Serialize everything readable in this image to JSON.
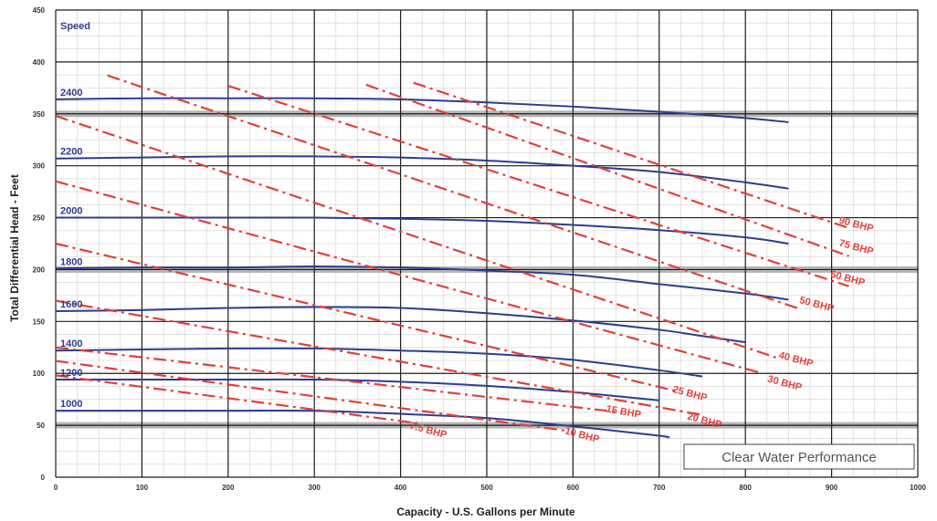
{
  "chart_data": {
    "type": "line",
    "xlabel": "Capacity - U.S. Gallons per Minute",
    "ylabel": "Total Differential Head - Feet",
    "xlim": [
      0,
      1000
    ],
    "ylim": [
      0,
      450
    ],
    "x_ticks": [
      0,
      100,
      200,
      300,
      400,
      500,
      600,
      700,
      800,
      900,
      1000
    ],
    "y_ticks": [
      0,
      50,
      100,
      150,
      200,
      250,
      300,
      350,
      400,
      450
    ],
    "grid": true,
    "legend_title": "Speed",
    "annotation": "Clear Water Performance",
    "colors": {
      "speed": "#2d3d8e",
      "bhp": "#e0403a",
      "grid": "#1c1c1c",
      "minor_grid": "#cfcfcf",
      "band": "#b5b5b5"
    },
    "series": [
      {
        "name": "2400",
        "kind": "speed",
        "points": [
          [
            0,
            364
          ],
          [
            100,
            365
          ],
          [
            200,
            365
          ],
          [
            300,
            365
          ],
          [
            400,
            364
          ],
          [
            500,
            361
          ],
          [
            600,
            357
          ],
          [
            700,
            352
          ],
          [
            800,
            346
          ],
          [
            850,
            342
          ]
        ]
      },
      {
        "name": "2200",
        "kind": "speed",
        "points": [
          [
            0,
            307
          ],
          [
            100,
            308
          ],
          [
            200,
            309
          ],
          [
            300,
            309
          ],
          [
            400,
            308
          ],
          [
            500,
            305
          ],
          [
            600,
            300
          ],
          [
            700,
            294
          ],
          [
            800,
            284
          ],
          [
            850,
            278
          ]
        ]
      },
      {
        "name": "2000",
        "kind": "speed",
        "points": [
          [
            0,
            250
          ],
          [
            100,
            250
          ],
          [
            200,
            250
          ],
          [
            300,
            250
          ],
          [
            400,
            249
          ],
          [
            500,
            247
          ],
          [
            600,
            243
          ],
          [
            700,
            238
          ],
          [
            800,
            231
          ],
          [
            850,
            225
          ]
        ]
      },
      {
        "name": "1800",
        "kind": "speed",
        "points": [
          [
            0,
            201
          ],
          [
            100,
            202
          ],
          [
            200,
            202
          ],
          [
            300,
            203
          ],
          [
            400,
            202
          ],
          [
            500,
            199
          ],
          [
            600,
            195
          ],
          [
            700,
            186
          ],
          [
            800,
            177
          ],
          [
            850,
            171
          ]
        ]
      },
      {
        "name": "1600",
        "kind": "speed",
        "points": [
          [
            0,
            160
          ],
          [
            100,
            161
          ],
          [
            200,
            163
          ],
          [
            300,
            164
          ],
          [
            400,
            163
          ],
          [
            500,
            158
          ],
          [
            600,
            151
          ],
          [
            700,
            142
          ],
          [
            750,
            136
          ],
          [
            800,
            130
          ]
        ]
      },
      {
        "name": "1400",
        "kind": "speed",
        "points": [
          [
            0,
            122
          ],
          [
            100,
            123
          ],
          [
            200,
            124
          ],
          [
            300,
            124
          ],
          [
            400,
            122
          ],
          [
            500,
            119
          ],
          [
            600,
            113
          ],
          [
            700,
            103
          ],
          [
            750,
            97
          ]
        ]
      },
      {
        "name": "1200",
        "kind": "speed",
        "points": [
          [
            0,
            94
          ],
          [
            100,
            94
          ],
          [
            200,
            94
          ],
          [
            300,
            94
          ],
          [
            400,
            92
          ],
          [
            500,
            88
          ],
          [
            600,
            82
          ],
          [
            700,
            74
          ]
        ]
      },
      {
        "name": "1000",
        "kind": "speed",
        "points": [
          [
            0,
            64
          ],
          [
            100,
            64
          ],
          [
            200,
            64
          ],
          [
            300,
            64
          ],
          [
            400,
            61
          ],
          [
            500,
            57
          ],
          [
            600,
            49
          ],
          [
            700,
            40
          ],
          [
            710,
            38
          ]
        ]
      },
      {
        "name": "90 BHP",
        "kind": "bhp",
        "points": [
          [
            415,
            380
          ],
          [
            920,
            240
          ]
        ]
      },
      {
        "name": "75 BHP",
        "kind": "bhp",
        "points": [
          [
            360,
            378
          ],
          [
            920,
            213
          ]
        ]
      },
      {
        "name": "60 BHP",
        "kind": "bhp",
        "points": [
          [
            200,
            377
          ],
          [
            920,
            184
          ]
        ]
      },
      {
        "name": "50 BHP",
        "kind": "bhp",
        "points": [
          [
            60,
            387
          ],
          [
            860,
            163
          ]
        ]
      },
      {
        "name": "40 BHP",
        "kind": "bhp",
        "points": [
          [
            0,
            348
          ],
          [
            840,
            114
          ]
        ]
      },
      {
        "name": "30 BHP",
        "kind": "bhp",
        "points": [
          [
            0,
            285
          ],
          [
            820,
            100
          ]
        ]
      },
      {
        "name": "25 BHP",
        "kind": "bhp",
        "points": [
          [
            0,
            225
          ],
          [
            720,
            83
          ]
        ]
      },
      {
        "name": "20 BHP",
        "kind": "bhp",
        "points": [
          [
            0,
            170
          ],
          [
            750,
            60
          ]
        ]
      },
      {
        "name": "15 BHP",
        "kind": "bhp",
        "points": [
          [
            0,
            125
          ],
          [
            650,
            63
          ]
        ]
      },
      {
        "name": "10 BHP",
        "kind": "bhp",
        "points": [
          [
            0,
            112
          ],
          [
            590,
            45
          ]
        ]
      },
      {
        "name": "7.5 BHP",
        "kind": "bhp",
        "points": [
          [
            0,
            98
          ],
          [
            420,
            52
          ]
        ]
      }
    ],
    "speed_labels": [
      {
        "text": "2400",
        "series": "2400"
      },
      {
        "text": "2200",
        "series": "2200"
      },
      {
        "text": "2000",
        "series": "2000"
      },
      {
        "text": "1800",
        "series": "1800"
      },
      {
        "text": "1600",
        "series": "1600"
      },
      {
        "text": "1400",
        "series": "1400"
      },
      {
        "text": "1200",
        "series": "1200"
      },
      {
        "text": "1000",
        "series": "1000"
      }
    ],
    "bhp_labels": [
      {
        "text": "90 BHP",
        "x": 908,
        "y": 245,
        "rotate": 15
      },
      {
        "text": "75 BHP",
        "x": 908,
        "y": 223,
        "rotate": 15
      },
      {
        "text": "60 BHP",
        "x": 898,
        "y": 193,
        "rotate": 15
      },
      {
        "text": "50 BHP",
        "x": 862,
        "y": 168,
        "rotate": 15
      },
      {
        "text": "40 BHP",
        "x": 838,
        "y": 115,
        "rotate": 15
      },
      {
        "text": "30 BHP",
        "x": 825,
        "y": 92,
        "rotate": 15
      },
      {
        "text": "25 BHP",
        "x": 715,
        "y": 82,
        "rotate": 15
      },
      {
        "text": "20 BHP",
        "x": 732,
        "y": 56,
        "rotate": 15
      },
      {
        "text": "15 BHP",
        "x": 638,
        "y": 63,
        "rotate": 10
      },
      {
        "text": "10 BHP",
        "x": 590,
        "y": 42,
        "rotate": 15
      },
      {
        "text": "7.5 BHP",
        "x": 410,
        "y": 47,
        "rotate": 15
      }
    ]
  }
}
